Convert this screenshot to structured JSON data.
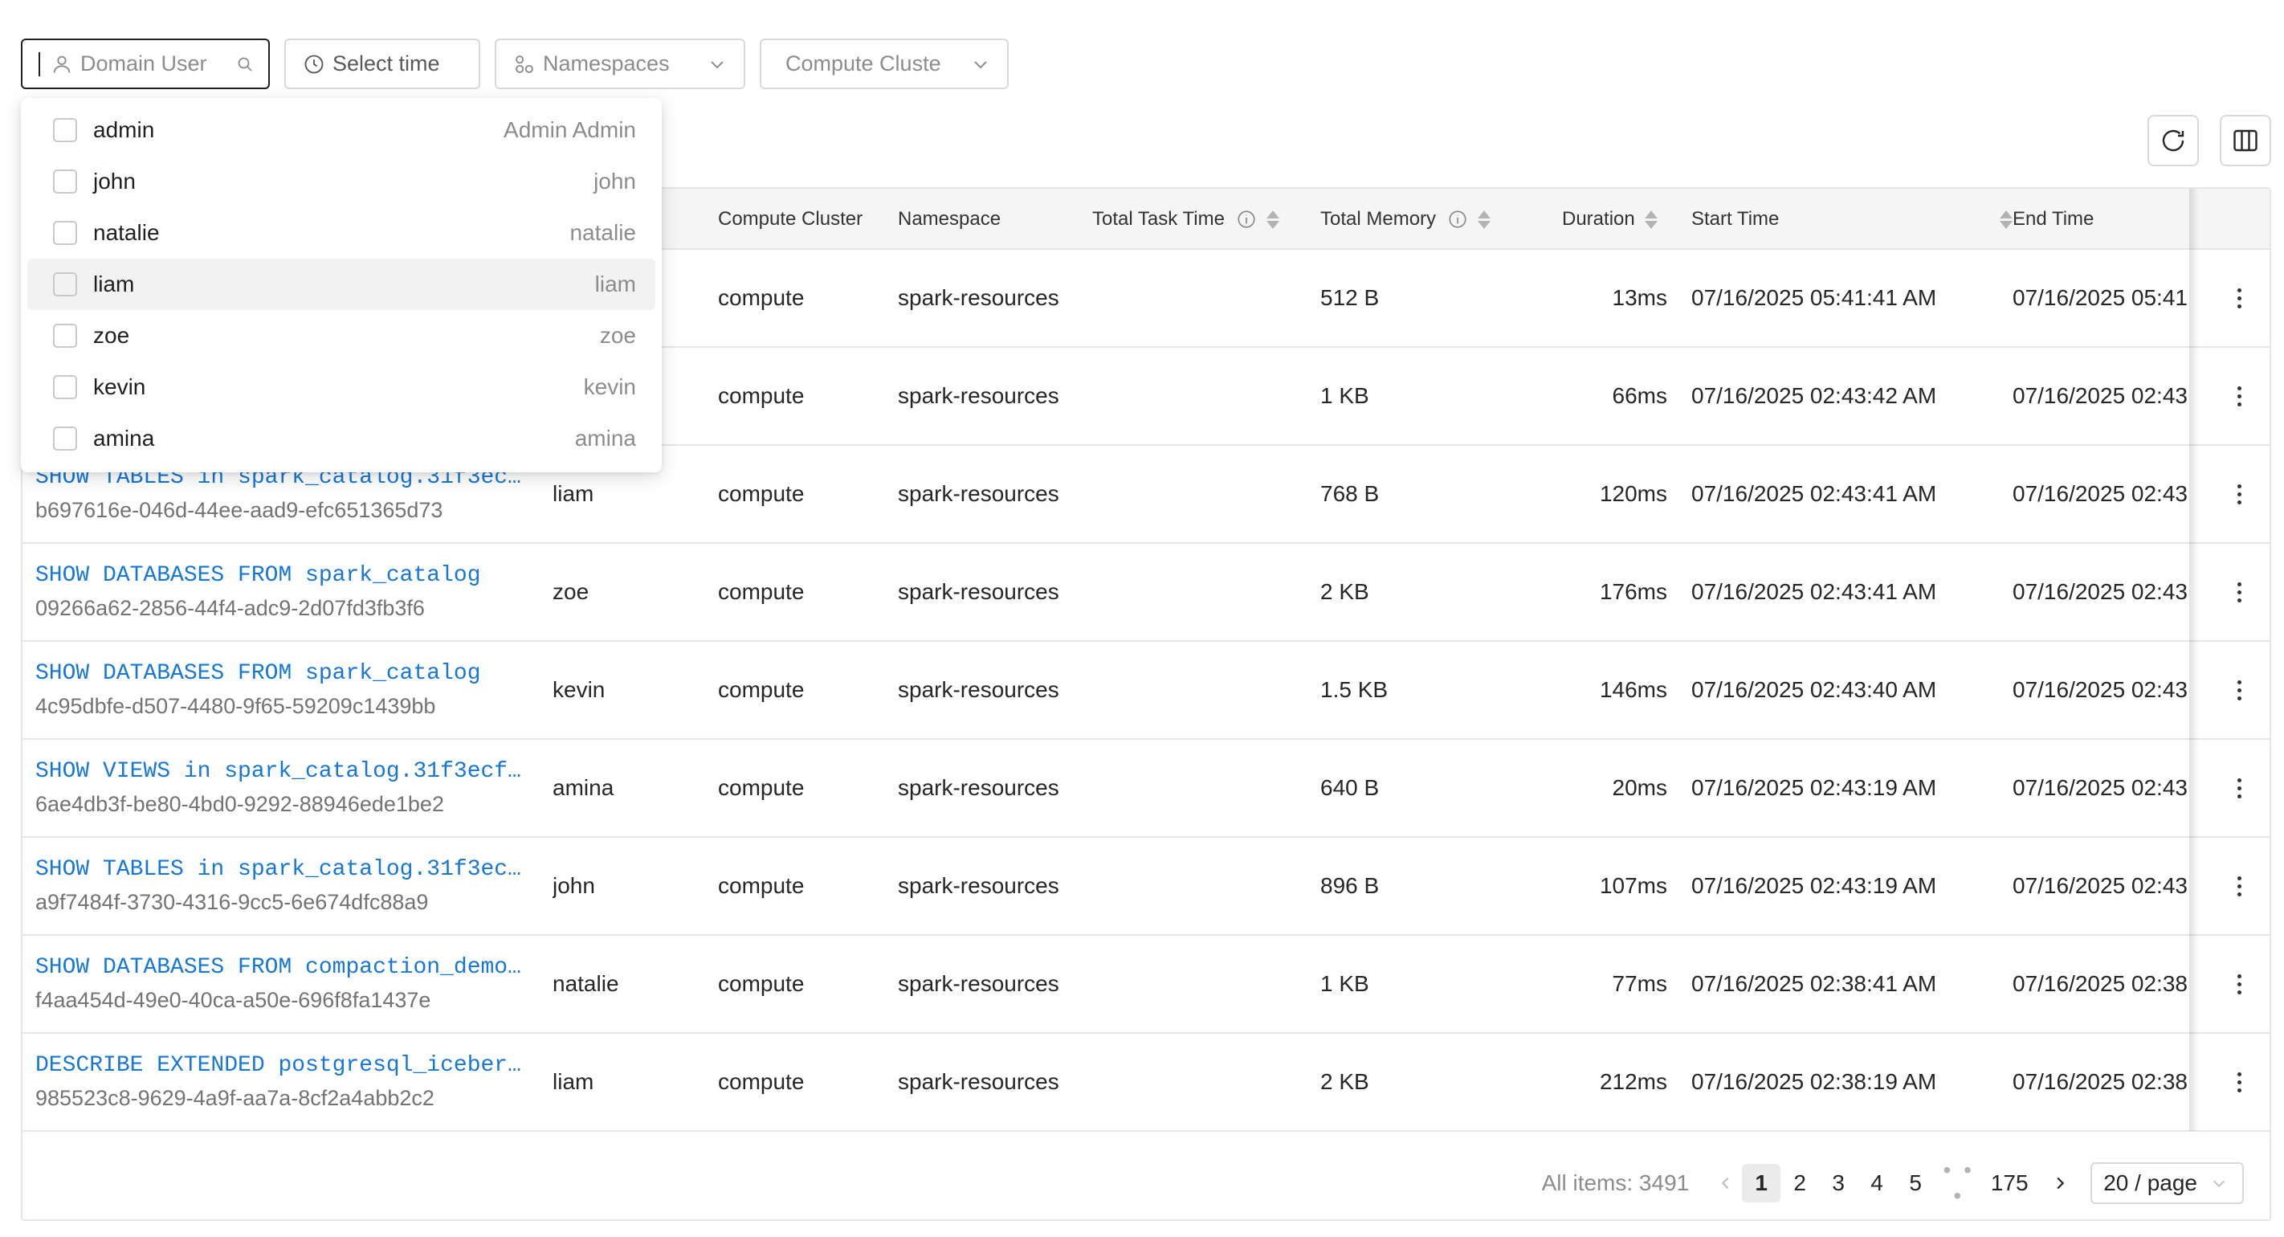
{
  "filters": {
    "domain_user_placeholder": "Domain User",
    "select_time": "Select time",
    "namespaces": "Namespaces",
    "compute_cluster": "Compute Cluste"
  },
  "dropdown": {
    "options": [
      {
        "label": "admin",
        "desc": "Admin Admin"
      },
      {
        "label": "john",
        "desc": "john"
      },
      {
        "label": "natalie",
        "desc": "natalie"
      },
      {
        "label": "liam",
        "desc": "liam"
      },
      {
        "label": "zoe",
        "desc": "zoe"
      },
      {
        "label": "kevin",
        "desc": "kevin"
      },
      {
        "label": "amina",
        "desc": "amina"
      }
    ]
  },
  "table": {
    "columns": {
      "compute_cluster": "Compute Cluster",
      "namespace": "Namespace",
      "total_task_time": "Total Task Time",
      "total_memory": "Total Memory",
      "duration": "Duration",
      "start_time": "Start Time",
      "end_time": "End Time"
    },
    "rows": [
      {
        "sql": "",
        "id": "",
        "user": "",
        "cluster": "compute",
        "namespace": "spark-resources",
        "memory": "512 B",
        "duration": "13ms",
        "start": "07/16/2025 05:41:41 AM",
        "end": "07/16/2025 05:41"
      },
      {
        "sql": "",
        "id": "",
        "user": "",
        "cluster": "compute",
        "namespace": "spark-resources",
        "memory": "1 KB",
        "duration": "66ms",
        "start": "07/16/2025 02:43:42 AM",
        "end": "07/16/2025 02:43"
      },
      {
        "sql": "SHOW TABLES in spark_catalog.31f3ec…",
        "id": "b697616e-046d-44ee-aad9-efc651365d73",
        "user": "liam",
        "cluster": "compute",
        "namespace": "spark-resources",
        "memory": "768 B",
        "duration": "120ms",
        "start": "07/16/2025 02:43:41 AM",
        "end": "07/16/2025 02:43"
      },
      {
        "sql": "SHOW DATABASES FROM spark_catalog",
        "id": "09266a62-2856-44f4-adc9-2d07fd3fb3f6",
        "user": "zoe",
        "cluster": "compute",
        "namespace": "spark-resources",
        "memory": "2 KB",
        "duration": "176ms",
        "start": "07/16/2025 02:43:41 AM",
        "end": "07/16/2025 02:43"
      },
      {
        "sql": "SHOW DATABASES FROM spark_catalog",
        "id": "4c95dbfe-d507-4480-9f65-59209c1439bb",
        "user": "kevin",
        "cluster": "compute",
        "namespace": "spark-resources",
        "memory": "1.5 KB",
        "duration": "146ms",
        "start": "07/16/2025 02:43:40 AM",
        "end": "07/16/2025 02:43"
      },
      {
        "sql": "SHOW VIEWS in spark_catalog.31f3ecf…",
        "id": "6ae4db3f-be80-4bd0-9292-88946ede1be2",
        "user": "amina",
        "cluster": "compute",
        "namespace": "spark-resources",
        "memory": "640 B",
        "duration": "20ms",
        "start": "07/16/2025 02:43:19 AM",
        "end": "07/16/2025 02:43"
      },
      {
        "sql": "SHOW TABLES in spark_catalog.31f3ec…",
        "id": "a9f7484f-3730-4316-9cc5-6e674dfc88a9",
        "user": "john",
        "cluster": "compute",
        "namespace": "spark-resources",
        "memory": "896 B",
        "duration": "107ms",
        "start": "07/16/2025 02:43:19 AM",
        "end": "07/16/2025 02:43"
      },
      {
        "sql": "SHOW DATABASES FROM compaction_demo…",
        "id": "f4aa454d-49e0-40ca-a50e-696f8fa1437e",
        "user": "natalie",
        "cluster": "compute",
        "namespace": "spark-resources",
        "memory": "1 KB",
        "duration": "77ms",
        "start": "07/16/2025 02:38:41 AM",
        "end": "07/16/2025 02:38"
      },
      {
        "sql": "DESCRIBE EXTENDED postgresql_iceber…",
        "id": "985523c8-9629-4a9f-aa7a-8cf2a4abb2c2",
        "user": "liam",
        "cluster": "compute",
        "namespace": "spark-resources",
        "memory": "2 KB",
        "duration": "212ms",
        "start": "07/16/2025 02:38:19 AM",
        "end": "07/16/2025 02:38"
      }
    ]
  },
  "pagination": {
    "total": "All items: 3491",
    "pages": [
      "1",
      "2",
      "3",
      "4",
      "5"
    ],
    "ellipsis": "• • •",
    "last": "175",
    "page_size": "20 / page"
  },
  "colors": {
    "link": "#1677d9",
    "border": "#d9d9d9",
    "header_bg": "#f5f5f5"
  },
  "icons": [
    "user-icon",
    "search-icon",
    "clock-icon",
    "namespace-icon",
    "chevron-down-icon",
    "refresh-icon",
    "columns-icon",
    "info-icon",
    "sort-icon",
    "more-icon",
    "chevron-left-icon",
    "chevron-right-icon"
  ]
}
